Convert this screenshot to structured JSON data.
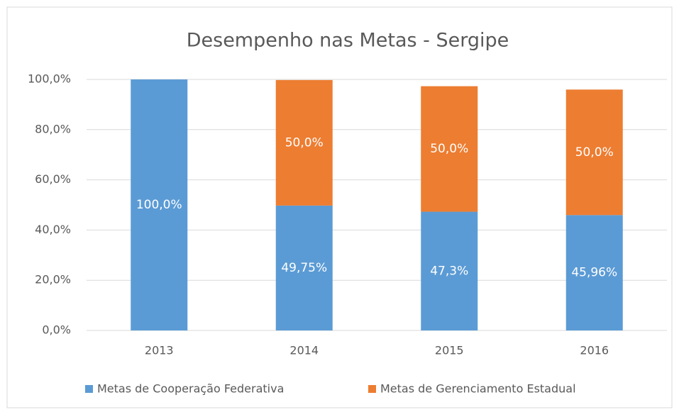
{
  "chart_data": {
    "type": "stacked_bar",
    "title": "Desempenho  nas Metas - Sergipe",
    "categories": [
      "2013",
      "2014",
      "2015",
      "2016"
    ],
    "series": [
      {
        "name": "Metas de Cooperação Federativa",
        "color": "#5b9bd5",
        "values": [
          100,
          49.75,
          47.3,
          45.96
        ],
        "value_labels": [
          "100,0%",
          "49,75%",
          "47,3%",
          "45,96%"
        ]
      },
      {
        "name": "Metas de Gerenciamento Estadual",
        "color": "#ed7d31",
        "values": [
          null,
          50,
          50,
          50
        ],
        "value_labels": [
          null,
          "50,0%",
          "50,0%",
          "50,0%"
        ]
      }
    ],
    "ylim": [
      0,
      100
    ],
    "yticks": [
      {
        "value": 0,
        "label": "0,0%"
      },
      {
        "value": 20,
        "label": "20,0%"
      },
      {
        "value": 40,
        "label": "40,0%"
      },
      {
        "value": 60,
        "label": "60,0%"
      },
      {
        "value": 80,
        "label": "80,0%"
      },
      {
        "value": 100,
        "label": "100,0%"
      }
    ],
    "grid": true,
    "legend": "bottom"
  }
}
